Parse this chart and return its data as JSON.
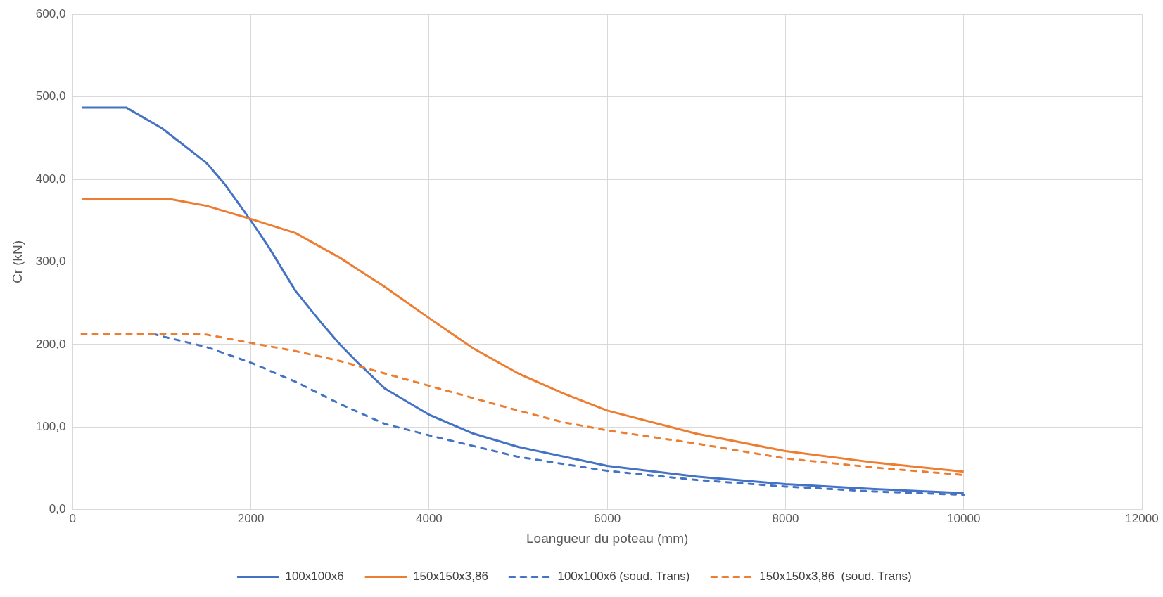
{
  "chart_data": {
    "type": "line",
    "xlabel": "Loangueur du poteau (mm)",
    "ylabel": "Cr (kN)",
    "xlim": [
      0,
      12000
    ],
    "xticks": [
      0,
      2000,
      4000,
      6000,
      8000,
      10000,
      12000
    ],
    "ylim": [
      0,
      600
    ],
    "yticks": [
      {
        "value": 0,
        "label": "0,0"
      },
      {
        "value": 100,
        "label": "100,0"
      },
      {
        "value": 200,
        "label": "200,0"
      },
      {
        "value": 300,
        "label": "300,0"
      },
      {
        "value": 400,
        "label": "400,0"
      },
      {
        "value": 500,
        "label": "500,0"
      },
      {
        "value": 600,
        "label": "600,0"
      }
    ],
    "grid": true,
    "legend": "bottom",
    "marker": "none",
    "series": [
      {
        "name": "100x100x6",
        "color": "#4472c4",
        "line_style": "solid",
        "x": [
          100,
          600,
          1000,
          1500,
          1700,
          2000,
          2200,
          2500,
          2800,
          3000,
          3200,
          3500,
          4000,
          4500,
          5000,
          6000,
          7000,
          8000,
          9000,
          10000
        ],
        "values": [
          487,
          487,
          462,
          420,
          395,
          350,
          318,
          265,
          225,
          200,
          178,
          147,
          115,
          92,
          76,
          53,
          40,
          31,
          25,
          20
        ]
      },
      {
        "name": "150x150x3,86",
        "color": "#ed7d31",
        "line_style": "solid",
        "x": [
          100,
          1100,
          1500,
          2000,
          2500,
          3000,
          3500,
          4000,
          4500,
          5000,
          5500,
          6000,
          7000,
          8000,
          9000,
          10000
        ],
        "values": [
          376,
          376,
          368,
          352,
          335,
          305,
          270,
          232,
          195,
          165,
          141,
          120,
          92,
          71,
          57,
          46
        ]
      },
      {
        "name": "100x100x6 (soud. Trans)",
        "color": "#4472c4",
        "line_style": "dashed",
        "x": [
          900,
          1000,
          1500,
          2000,
          2500,
          3000,
          3500,
          4000,
          4500,
          5000,
          6000,
          7000,
          8000,
          9000,
          10000
        ],
        "values": [
          213,
          210,
          197,
          178,
          155,
          128,
          104,
          90,
          77,
          64,
          47,
          36,
          28,
          22,
          18
        ]
      },
      {
        "name": "150x150x3,86  (soud. Trans)",
        "color": "#ed7d31",
        "line_style": "dashed",
        "x": [
          100,
          1400,
          1500,
          2000,
          2500,
          3000,
          3500,
          4000,
          4500,
          5000,
          5500,
          6000,
          7000,
          8000,
          9000,
          10000
        ],
        "values": [
          213,
          213,
          212,
          202,
          192,
          180,
          165,
          150,
          135,
          120,
          106,
          96,
          80,
          62,
          51,
          42
        ]
      }
    ]
  }
}
